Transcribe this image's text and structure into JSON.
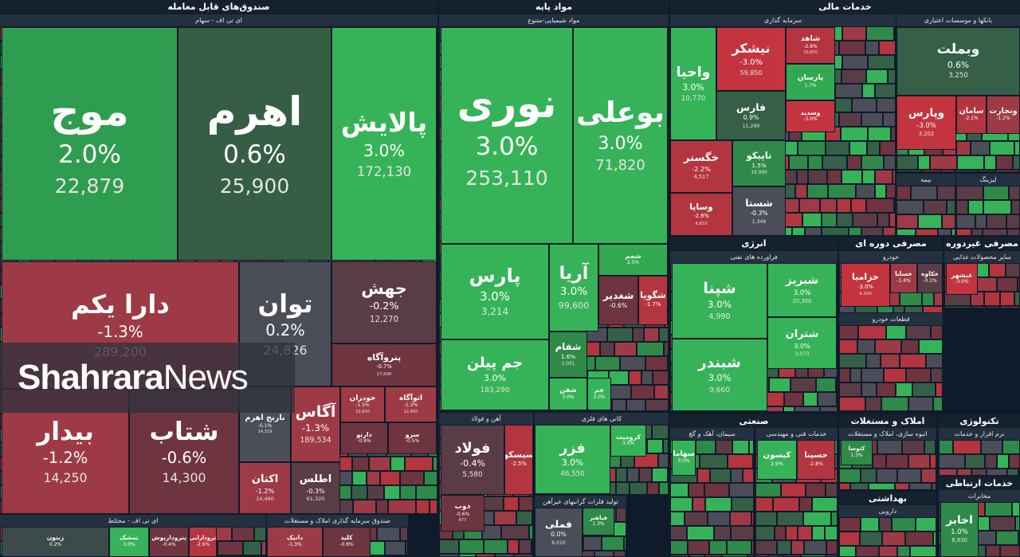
{
  "sections": [
    {
      "title": "صندوق‌های قابل معامله",
      "groups": [
        {
          "title": "ای تی اف - سهام",
          "tiles": [
            {
              "name": "موج",
              "change": "2.0%",
              "volume": "22,879",
              "color": "#2f9d4f"
            },
            {
              "name": "اهرم",
              "change": "0.6%",
              "volume": "25,900",
              "color": "#355e45"
            },
            {
              "name": "پالایش",
              "change": "3.0%",
              "volume": "172,130",
              "color": "#36b358"
            },
            {
              "name": "دارا یکم",
              "change": "-1.3%",
              "volume": "289,200",
              "color": "#9e3a45"
            },
            {
              "name": "بیدار",
              "change": "-1.2%",
              "volume": "14,250",
              "color": "#9e3a45"
            },
            {
              "name": "شتاب",
              "change": "-0.6%",
              "volume": "14,300",
              "color": "#6e3440"
            },
            {
              "name": "توان",
              "change": "0.2%",
              "volume": "24,826",
              "color": "#4b4d58"
            },
            {
              "name": "جهش",
              "change": "-0.2%",
              "volume": "12,270",
              "color": "#5a3c47"
            },
            {
              "name": "پتروآگاه",
              "change": "-0.7%",
              "volume": "17,690",
              "color": "#6e3440"
            },
            {
              "name": "نارنج اهرم",
              "change": "-0.1%",
              "volume": "14,319",
              "color": "#4b4d58"
            },
            {
              "name": "آگاس",
              "change": "-1.3%",
              "volume": "189,534",
              "color": "#9e3a45"
            },
            {
              "name": "خودران",
              "change": "-1.5%",
              "volume": "10,630",
              "color": "#9e3a45"
            },
            {
              "name": "اتوآگاه",
              "change": "-1.3%",
              "volume": "12,450",
              "color": "#9e3a45"
            },
            {
              "name": "دارنو",
              "change": "-0.9%",
              "color": "#6e3440"
            },
            {
              "name": "سرو",
              "change": "-0.5%",
              "color": "#6e3440"
            },
            {
              "name": "اکتان",
              "change": "-1.2%",
              "volume": "14,460",
              "color": "#9e3a45"
            },
            {
              "name": "اطلس",
              "change": "-0.3%",
              "volume": "61,320",
              "color": "#5a3c47"
            }
          ]
        },
        {
          "title": "ای تی اف - مختلط",
          "tiles": [
            {
              "name": "زیتون",
              "change": "0.2%",
              "color": "#3d4a4a"
            },
            {
              "name": "تمشک",
              "change": "3.0%",
              "color": "#36b358"
            },
            {
              "name": "پتروداریوش",
              "change": "-0.4%",
              "color": "#6e3440"
            },
            {
              "name": "ترودارایی",
              "change": "-2.6%",
              "color": "#b3353f"
            }
          ]
        },
        {
          "title": "صندوق سرمایه گذاری املاک و مستغلات",
          "tiles": [
            {
              "name": "دانیک",
              "change": "-1.3%",
              "color": "#9e3a45"
            },
            {
              "name": "کلید",
              "change": "-0.8%",
              "color": "#6e3440"
            }
          ]
        }
      ]
    },
    {
      "title": "مواد پایه",
      "groups": [
        {
          "title": "مواد شیمیایی-متنوع",
          "tiles": [
            {
              "name": "نوری",
              "change": "3.0%",
              "volume": "253,110",
              "color": "#36b358"
            },
            {
              "name": "بوعلی",
              "change": "3.0%",
              "volume": "71,820",
              "color": "#36b358"
            },
            {
              "name": "پارس",
              "change": "3.0%",
              "volume": "3,214",
              "color": "#36b358"
            },
            {
              "name": "جم پیلن",
              "change": "3.0%",
              "volume": "183,290",
              "color": "#36b358"
            },
            {
              "name": "آریا",
              "change": "3.0%",
              "volume": "99,600",
              "color": "#36b358"
            },
            {
              "name": "شجم",
              "change": "2.5%",
              "color": "#33a852"
            },
            {
              "name": "شغدیر",
              "change": "-0.6%",
              "color": "#6e3440"
            },
            {
              "name": "شگویا",
              "change": "-1.7%",
              "color": "#b3353f"
            },
            {
              "name": "شفام",
              "change": "1.6%",
              "volume": "2,001",
              "color": "#2f8a49"
            },
            {
              "name": "شفن",
              "change": "3.0%",
              "color": "#36b358"
            },
            {
              "name": "جم",
              "change": "3.0%",
              "color": "#36b358"
            }
          ]
        },
        {
          "title": "آهن و فولاد",
          "tiles": [
            {
              "name": "فولاد",
              "change": "-0.4%",
              "volume": "5,580",
              "color": "#5a3c47"
            },
            {
              "name": "سیسکو",
              "change": "-2.5%",
              "color": "#b3353f"
            },
            {
              "name": "ذوب",
              "change": "-0.6%",
              "volume": "677",
              "color": "#6e3440"
            }
          ]
        },
        {
          "title": "کانی های فلزی",
          "tiles": [
            {
              "name": "فزر",
              "change": "3.0%",
              "volume": "46,550",
              "color": "#36b358"
            },
            {
              "name": "کرومیت",
              "change": "3.0%",
              "color": "#36b358"
            }
          ]
        },
        {
          "title": "تولید فلزات گرانبهای غیرآهن",
          "tiles": [
            {
              "name": "فملی",
              "change": "0.0%",
              "volume": "8,010",
              "color": "#4b4d58"
            },
            {
              "name": "فباهنر",
              "change": "1.3%",
              "color": "#2f8a49"
            }
          ]
        }
      ]
    },
    {
      "title": "خدمات مالی",
      "groups": [
        {
          "title": "سرمایه گذاری",
          "tiles": [
            {
              "name": "واحیا",
              "change": "3.0%",
              "volume": "10,770",
              "color": "#36b358"
            },
            {
              "name": "نیشکر",
              "change": "-3.0%",
              "volume": "59,850",
              "color": "#c4343f"
            },
            {
              "name": "شاهد",
              "change": "-2.8%",
              "volume": "10,830",
              "color": "#b3353f"
            },
            {
              "name": "فارس",
              "change": "0.9%",
              "volume": "11,290",
              "color": "#356047"
            },
            {
              "name": "پارسان",
              "change": "1.7%",
              "color": "#33a852"
            },
            {
              "name": "وسدید",
              "change": "-3.0%",
              "color": "#c4343f"
            },
            {
              "name": "خگستر",
              "change": "-2.2%",
              "volume": "4,517",
              "color": "#b3353f"
            },
            {
              "name": "وساپا",
              "change": "-2.8%",
              "volume": "4,810",
              "color": "#b3353f"
            },
            {
              "name": "تاپیکو",
              "change": "1.5%",
              "volume": "19,990",
              "color": "#2f8a49"
            },
            {
              "name": "شستا",
              "change": "-0.3%",
              "volume": "1,349",
              "color": "#4b4d58"
            }
          ]
        },
        {
          "title": "بانکها و موسسات اعتباری",
          "tiles": [
            {
              "name": "وبملت",
              "change": "0.6%",
              "volume": "3,250",
              "color": "#356047"
            },
            {
              "name": "وپارس",
              "change": "-3.0%",
              "volume": "3,202",
              "color": "#c4343f"
            },
            {
              "name": "سامان",
              "change": "-2.1%",
              "color": "#b3353f"
            },
            {
              "name": "وتجارت",
              "change": "-1.2%",
              "color": "#9e3a45"
            }
          ]
        },
        {
          "title": "بیمه",
          "tiles": []
        },
        {
          "title": "لیزینگ",
          "tiles": []
        }
      ]
    },
    {
      "title": "انرژی",
      "groups": [
        {
          "title": "فراورده های نفتی",
          "tiles": [
            {
              "name": "شپنا",
              "change": "3.0%",
              "volume": "4,990",
              "color": "#36b358"
            },
            {
              "name": "شبندر",
              "change": "3.0%",
              "volume": "9,660",
              "color": "#36b358"
            },
            {
              "name": "شبریز",
              "change": "3.0%",
              "volume": "20,300",
              "color": "#36b358"
            },
            {
              "name": "شتران",
              "change": "3.0%",
              "volume": "3,073",
              "color": "#36b358"
            }
          ]
        }
      ]
    },
    {
      "title": "مصرفی دوره ای",
      "groups": [
        {
          "title": "خودرو",
          "tiles": [
            {
              "name": "خزامیا",
              "change": "-3.0%",
              "volume": "4,340",
              "color": "#c4343f"
            },
            {
              "name": "خسایا",
              "change": "-1.4%",
              "color": "#9e3a45"
            },
            {
              "name": "خکاوه",
              "change": "-0.1%",
              "color": "#5a3c47"
            }
          ]
        },
        {
          "title": "قطعات خودرو",
          "tiles": []
        }
      ]
    },
    {
      "title": "مصرفی غیردوره ای",
      "groups": [
        {
          "title": "سایر محصولات غذایی",
          "tiles": [
            {
              "name": "غبشهر",
              "change": "-3.0%",
              "color": "#c4343f"
            }
          ]
        }
      ]
    },
    {
      "title": "صنعتی",
      "groups": [
        {
          "title": "سیمان، آهک و گچ",
          "tiles": [
            {
              "name": "سهاما",
              "change": "3.0%",
              "color": "#36b358"
            }
          ]
        },
        {
          "title": "خدمات فنی و مهندسی",
          "tiles": [
            {
              "name": "کیسون",
              "change": "2.9%",
              "color": "#36b358"
            },
            {
              "name": "حسینا",
              "change": "-2.8%",
              "color": "#b3353f"
            }
          ]
        }
      ]
    },
    {
      "title": "املاک و مستغلات",
      "groups": [
        {
          "title": "انبوه سازی، املاک و مستغلات",
          "tiles": [
            {
              "name": "کتوسا",
              "change": "1.3%",
              "color": "#2f8a49"
            }
          ]
        }
      ]
    },
    {
      "title": "بهداشتی",
      "groups": [
        {
          "title": "دارویی",
          "tiles": []
        }
      ]
    },
    {
      "title": "تکنولوژی",
      "groups": [
        {
          "title": "نرم افزار و خدمات",
          "tiles": []
        }
      ]
    },
    {
      "title": "خدمات ارتباطی",
      "groups": [
        {
          "title": "مخابرات",
          "tiles": [
            {
              "name": "اخابر",
              "change": "1.0%",
              "volume": "8,930",
              "color": "#2f8a49"
            }
          ]
        }
      ]
    }
  ],
  "watermark": {
    "brand": "Shahrara",
    "suffix": "News"
  }
}
